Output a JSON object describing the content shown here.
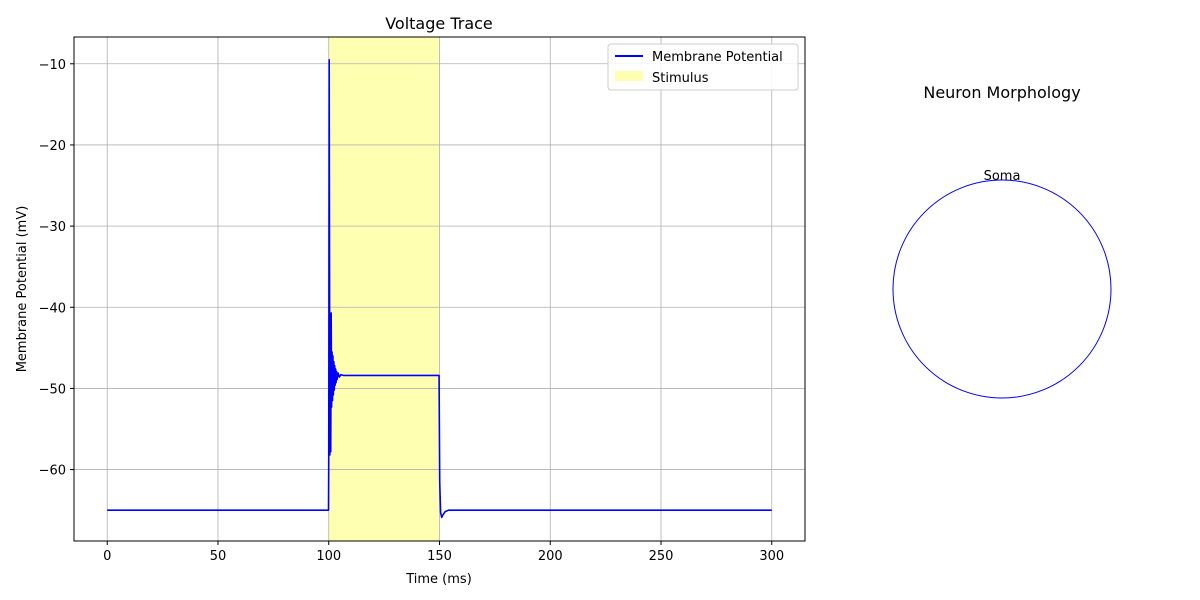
{
  "chart_data": [
    {
      "type": "line",
      "title": "Voltage Trace",
      "xlabel": "Time (ms)",
      "ylabel": "Membrane Potential (mV)",
      "xlim": [
        -15,
        315
      ],
      "ylim": [
        -68.8,
        -6.7
      ],
      "xticks": [
        0,
        50,
        100,
        150,
        200,
        250,
        300
      ],
      "yticks": [
        -60,
        -50,
        -40,
        -30,
        -20,
        -10
      ],
      "grid": true,
      "legend_position": "top-right",
      "stimulus": {
        "name": "Stimulus",
        "start": 100,
        "end": 150,
        "color": "#ffffb2"
      },
      "series": [
        {
          "name": "Membrane Potential",
          "color": "#0000ff",
          "x": [
            0,
            99.9,
            100,
            100.2,
            100.5,
            100.7,
            100.9,
            101.1,
            101.3,
            101.5,
            101.7,
            101.9,
            102.1,
            102.3,
            102.5,
            102.7,
            102.9,
            103.1,
            103.3,
            103.5,
            103.8,
            104.2,
            104.8,
            105.5,
            106.5,
            108,
            149.8,
            150.1,
            150.5,
            151,
            151.5,
            152.5,
            154,
            300
          ],
          "y": [
            -65,
            -65,
            -58.5,
            -9.5,
            -58.2,
            -43.5,
            -57.8,
            -40.7,
            -52.3,
            -45.5,
            -51.5,
            -46,
            -50.8,
            -46.7,
            -50.2,
            -47.2,
            -49.6,
            -47.6,
            -49.3,
            -47.9,
            -48.9,
            -48.1,
            -48.6,
            -48.3,
            -48.4,
            -48.4,
            -48.4,
            -61.5,
            -65.3,
            -65.9,
            -65.6,
            -65.2,
            -65,
            -65
          ]
        }
      ]
    },
    {
      "type": "diagram",
      "title": "Neuron Morphology",
      "components": [
        {
          "name": "Soma",
          "shape": "circle",
          "color": "#0000ff"
        }
      ]
    }
  ]
}
